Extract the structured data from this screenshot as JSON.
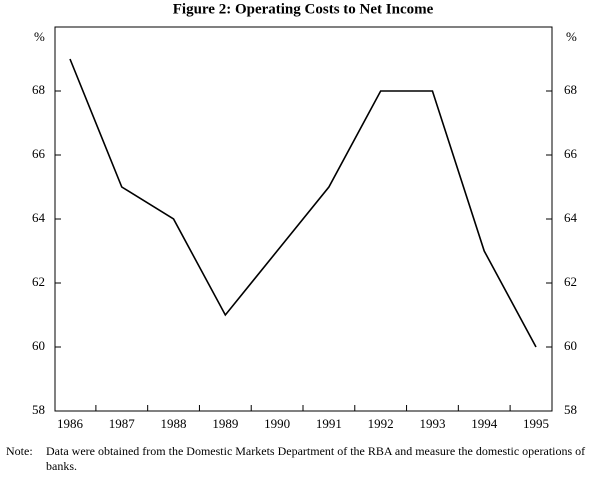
{
  "chart_data": {
    "type": "line",
    "title": "Figure 2: Operating Costs to Net Income",
    "y_unit": "%",
    "y2_unit": "%",
    "categories": [
      "1986",
      "1987",
      "1988",
      "1989",
      "1990",
      "1991",
      "1992",
      "1993",
      "1994",
      "1995"
    ],
    "values": [
      69,
      65,
      64,
      61,
      63,
      65,
      68,
      68,
      63,
      60
    ],
    "color": "#000000",
    "ylim": [
      58,
      70
    ],
    "yticks": [
      58,
      60,
      62,
      64,
      66,
      68
    ],
    "y2lim": [
      58,
      70
    ],
    "y2ticks": [
      58,
      60,
      62,
      64,
      66,
      68
    ],
    "grid": false
  },
  "note": {
    "label": "Note:",
    "text": "Data were obtained from the Domestic Markets Department of the RBA and measure the domestic operations of banks."
  }
}
